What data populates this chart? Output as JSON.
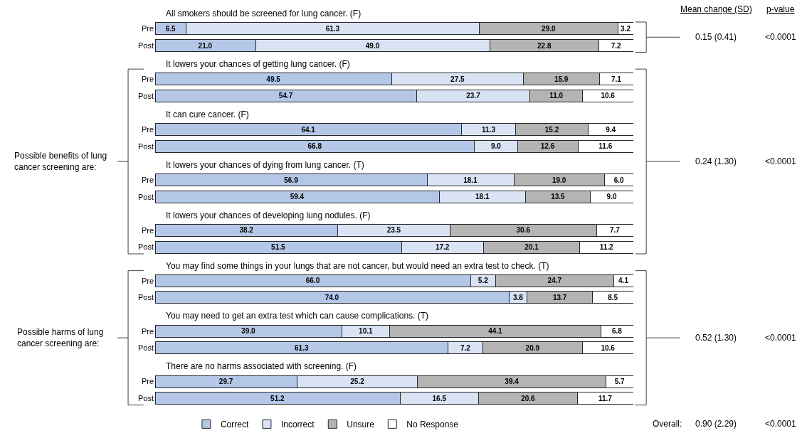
{
  "chart_data": {
    "type": "bar",
    "orientation": "horizontal",
    "stacked": true,
    "legend": "bottom",
    "tick_labels": "y",
    "xlim": [
      0,
      100
    ],
    "categories": [
      "Pre",
      "Post",
      "Pre",
      "Post",
      "Pre",
      "Post",
      "Pre",
      "Post",
      "Pre",
      "Post",
      "Pre",
      "Post",
      "Pre",
      "Post",
      "Pre",
      "Post"
    ],
    "series": [
      {
        "name": "Correct",
        "color": "#b4c7e7",
        "values": [
          6.5,
          21.0,
          49.5,
          54.7,
          64.1,
          66.8,
          56.9,
          59.4,
          38.2,
          51.5,
          66.0,
          74.0,
          39.0,
          61.3,
          29.7,
          51.2
        ],
        "value_labels": [
          "6.5",
          "21.0",
          "49.5",
          "54.7",
          "64.1",
          "66.8",
          "56.9",
          "59.4",
          "38.2",
          "51.5",
          "66.0",
          "74.0",
          "39.0",
          "61.3",
          "29.7",
          "51.2"
        ]
      },
      {
        "name": "Incorrect",
        "color": "#dae3f3",
        "values": [
          61.3,
          49.0,
          27.5,
          23.7,
          11.3,
          9.0,
          18.1,
          18.1,
          23.5,
          17.2,
          5.2,
          3.8,
          10.1,
          7.2,
          25.2,
          16.5
        ],
        "value_labels": [
          "61.3",
          "49.0",
          "27.5",
          "23.7",
          "11.3",
          "9.0",
          "18.1",
          "18.1",
          "23.5",
          "17.2",
          "5.2",
          "3.8",
          "10.1",
          "7.2",
          "25.2",
          "16.5"
        ]
      },
      {
        "name": "Unsure",
        "color": "#b4b4b4",
        "values": [
          29.0,
          22.8,
          15.9,
          11.0,
          15.2,
          12.6,
          19.0,
          13.5,
          30.6,
          20.1,
          24.7,
          13.7,
          44.1,
          20.9,
          39.4,
          20.6
        ],
        "value_labels": [
          "29.0",
          "22.8",
          "15.9",
          "11.0",
          "15.2",
          "12.6",
          "19.0",
          "13.5",
          "30.6",
          "20.1",
          "24.7",
          "13.7",
          "44.1",
          "20.9",
          "39.4",
          "20.6"
        ]
      },
      {
        "name": "No Response",
        "color": "#ffffff",
        "values": [
          3.2,
          7.2,
          7.1,
          10.6,
          9.4,
          11.6,
          6.0,
          9.0,
          7.7,
          11.2,
          4.1,
          8.5,
          6.8,
          10.6,
          5.7,
          11.7
        ],
        "value_labels": [
          "3.2",
          "7.2",
          "7.1",
          "10.6",
          "9.4",
          "11.6",
          "6.0",
          "9.0",
          "7.7",
          "11.2",
          "4.1",
          "8.5",
          "6.8",
          "10.6",
          "5.7",
          "11.7"
        ]
      }
    ],
    "annotations": [
      "All smokers should be screened for lung cancer. (F)",
      "It lowers your chances of getting lung cancer. (F)",
      "It can cure cancer. (F)",
      "It lowers your chances of dying from lung cancer. (T)",
      "It lowers your chances of developing lung nodules. (F)",
      "You may find some things in your lungs that are not cancer, but would need an extra test to check. (T)",
      "You may need to get an extra test which can cause complications. (T)",
      "There are no harms associated with screening. (F)",
      "Possible benefits of lung\ncancer screening are:",
      "Possible harms of lung\ncancer screening are:",
      "Mean change (SD)",
      "p-value",
      "0.15 (0.41)",
      "<0.0001",
      "0.24 (1.30)",
      "<0.0001",
      "0.52 (1.30)",
      "<0.0001",
      "Overall:",
      "0.90 (2.29)",
      "<0.0001"
    ]
  }
}
